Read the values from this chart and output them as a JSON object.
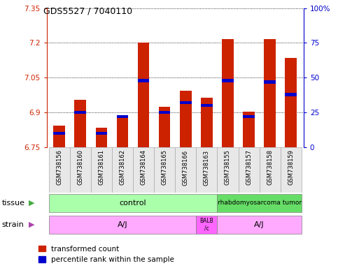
{
  "title": "GDS5527 / 7040110",
  "samples": [
    "GSM738156",
    "GSM738160",
    "GSM738161",
    "GSM738162",
    "GSM738164",
    "GSM738165",
    "GSM738166",
    "GSM738163",
    "GSM738155",
    "GSM738157",
    "GSM738158",
    "GSM738159"
  ],
  "transformed_counts": [
    6.845,
    6.955,
    6.835,
    6.885,
    7.2,
    6.925,
    6.995,
    6.965,
    7.215,
    6.905,
    7.215,
    7.135
  ],
  "percentile_ranks": [
    10,
    25,
    10,
    22,
    48,
    25,
    32,
    30,
    48,
    22,
    47,
    38
  ],
  "ymin": 6.75,
  "ymax": 7.35,
  "yticks": [
    6.75,
    6.9,
    7.05,
    7.2,
    7.35
  ],
  "pct_ticks": [
    0,
    25,
    50,
    75,
    100
  ],
  "bar_color": "#cc2200",
  "pct_color": "#0000cc",
  "tissue_color_control": "#aaffaa",
  "tissue_color_rhabdo": "#66dd66",
  "strain_color_aj": "#ffaaff",
  "strain_color_balb": "#ff66ff",
  "legend_items": [
    "transformed count",
    "percentile rank within the sample"
  ]
}
